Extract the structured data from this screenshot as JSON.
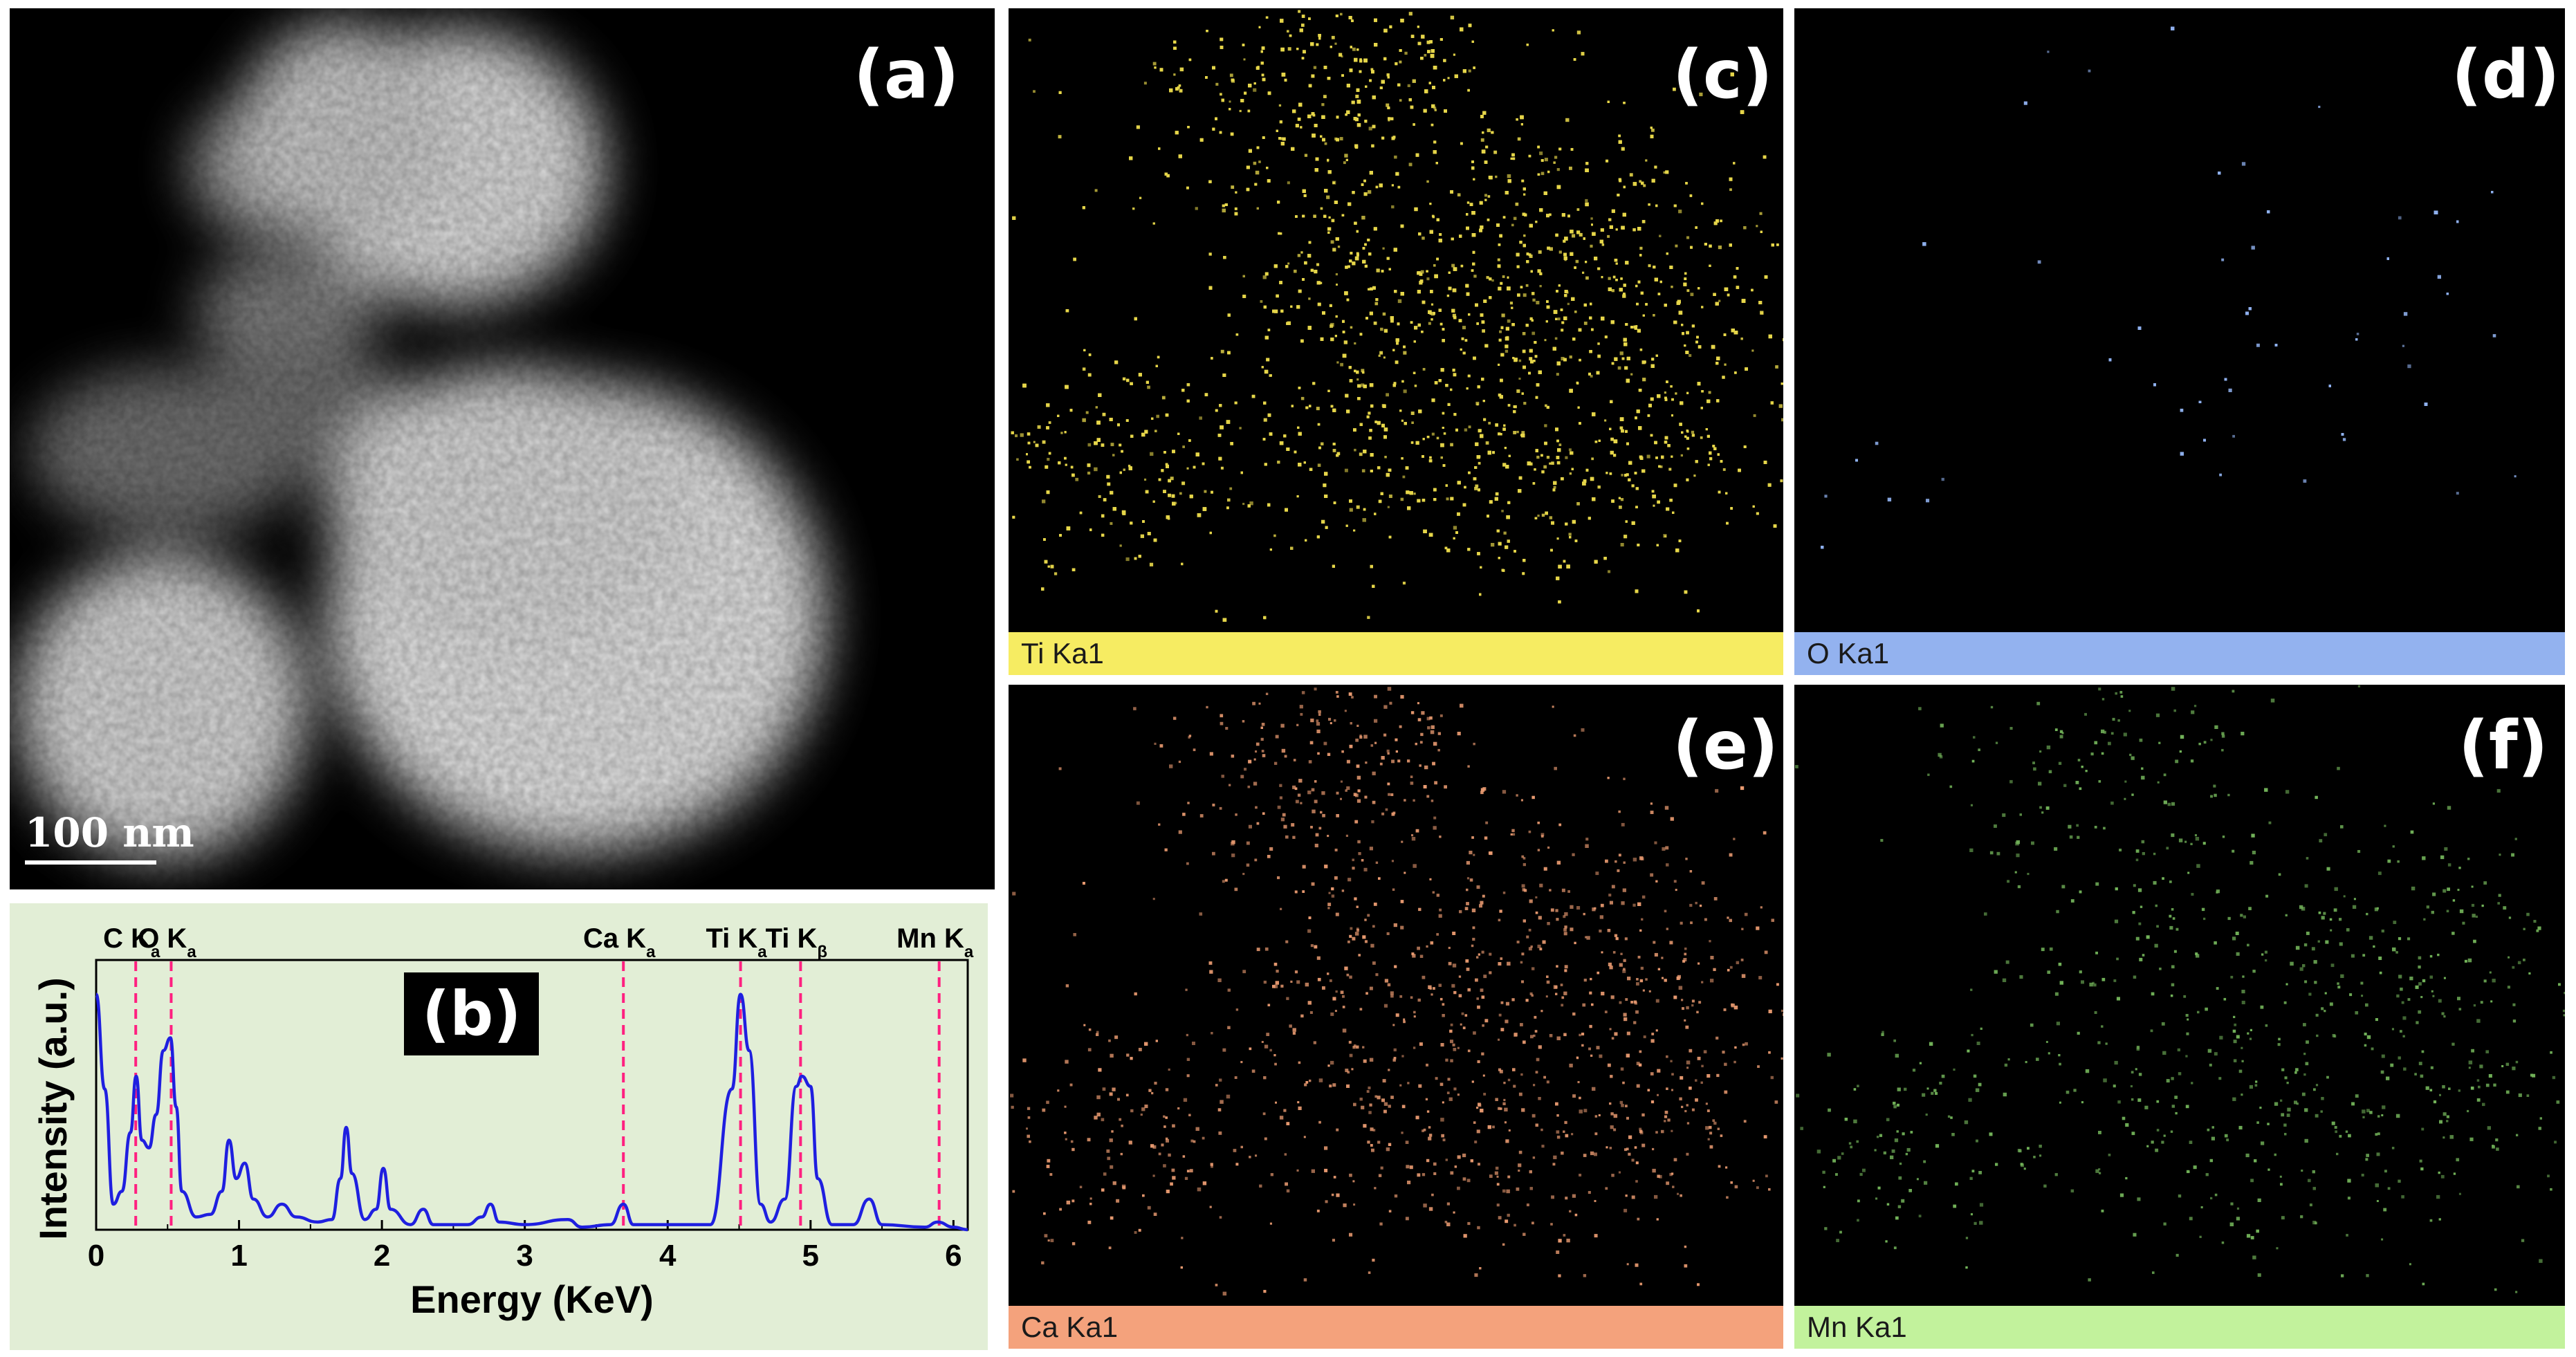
{
  "panels": {
    "a": {
      "label": "(a)",
      "scale_bar": "100 nm"
    },
    "b": {
      "label": "(b)"
    },
    "c": {
      "label": "(c)",
      "map_label": "Ti Ka1",
      "bar_color": "#f6ec62",
      "dot_color": "#e6d64a"
    },
    "d": {
      "label": "(d)",
      "map_label": "O Ka1",
      "bar_color": "#93b2ef",
      "dot_color": "#8fb0ee"
    },
    "e": {
      "label": "(e)",
      "map_label": "Ca Ka1",
      "bar_color": "#f4a27c",
      "dot_color": "#e89a70"
    },
    "f": {
      "label": "(f)",
      "map_label": "Mn Ka1",
      "bar_color": "#c2f29c",
      "dot_color": "#73b45a"
    }
  },
  "chart_data": {
    "type": "line",
    "title": "",
    "xlabel": "Energy (KeV)",
    "ylabel": "Intensity (a.u.)",
    "xlim": [
      0,
      6.1
    ],
    "xticks": [
      0,
      1,
      2,
      3,
      4,
      5,
      6
    ],
    "series": [
      {
        "color": "#1f1fe0",
        "points": [
          [
            0.0,
            0.92
          ],
          [
            0.06,
            0.55
          ],
          [
            0.12,
            0.1
          ],
          [
            0.18,
            0.15
          ],
          [
            0.24,
            0.38
          ],
          [
            0.28,
            0.6
          ],
          [
            0.32,
            0.35
          ],
          [
            0.37,
            0.32
          ],
          [
            0.42,
            0.45
          ],
          [
            0.47,
            0.7
          ],
          [
            0.52,
            0.75
          ],
          [
            0.56,
            0.48
          ],
          [
            0.6,
            0.15
          ],
          [
            0.7,
            0.05
          ],
          [
            0.8,
            0.06
          ],
          [
            0.88,
            0.15
          ],
          [
            0.93,
            0.35
          ],
          [
            0.98,
            0.2
          ],
          [
            1.04,
            0.26
          ],
          [
            1.1,
            0.12
          ],
          [
            1.2,
            0.05
          ],
          [
            1.3,
            0.1
          ],
          [
            1.4,
            0.05
          ],
          [
            1.55,
            0.03
          ],
          [
            1.65,
            0.04
          ],
          [
            1.71,
            0.2
          ],
          [
            1.75,
            0.4
          ],
          [
            1.79,
            0.22
          ],
          [
            1.88,
            0.04
          ],
          [
            1.96,
            0.08
          ],
          [
            2.01,
            0.24
          ],
          [
            2.06,
            0.08
          ],
          [
            2.2,
            0.02
          ],
          [
            2.29,
            0.08
          ],
          [
            2.36,
            0.02
          ],
          [
            2.6,
            0.02
          ],
          [
            2.7,
            0.05
          ],
          [
            2.76,
            0.1
          ],
          [
            2.82,
            0.03
          ],
          [
            3.0,
            0.02
          ],
          [
            3.3,
            0.04
          ],
          [
            3.4,
            0.01
          ],
          [
            3.6,
            0.02
          ],
          [
            3.69,
            0.1
          ],
          [
            3.76,
            0.02
          ],
          [
            4.3,
            0.02
          ],
          [
            4.45,
            0.55
          ],
          [
            4.51,
            0.92
          ],
          [
            4.57,
            0.7
          ],
          [
            4.65,
            0.1
          ],
          [
            4.72,
            0.03
          ],
          [
            4.82,
            0.12
          ],
          [
            4.9,
            0.56
          ],
          [
            4.94,
            0.6
          ],
          [
            5.0,
            0.56
          ],
          [
            5.05,
            0.2
          ],
          [
            5.15,
            0.02
          ],
          [
            5.3,
            0.02
          ],
          [
            5.41,
            0.12
          ],
          [
            5.5,
            0.02
          ],
          [
            5.8,
            0.01
          ],
          [
            5.89,
            0.03
          ],
          [
            6.0,
            0.01
          ],
          [
            6.1,
            0.0
          ]
        ]
      }
    ],
    "peak_markers": [
      {
        "label": "C K",
        "sub": "a",
        "x": 0.277
      },
      {
        "label": "O K",
        "sub": "a",
        "x": 0.525
      },
      {
        "label": "Ca K",
        "sub": "a",
        "x": 3.69
      },
      {
        "label": "Ti K",
        "sub": "a",
        "x": 4.51
      },
      {
        "label": "Ti K",
        "sub": "β",
        "x": 4.93
      },
      {
        "label": "Mn K",
        "sub": "a",
        "x": 5.9
      }
    ],
    "marker_color": "#ff2080",
    "grid": false
  }
}
